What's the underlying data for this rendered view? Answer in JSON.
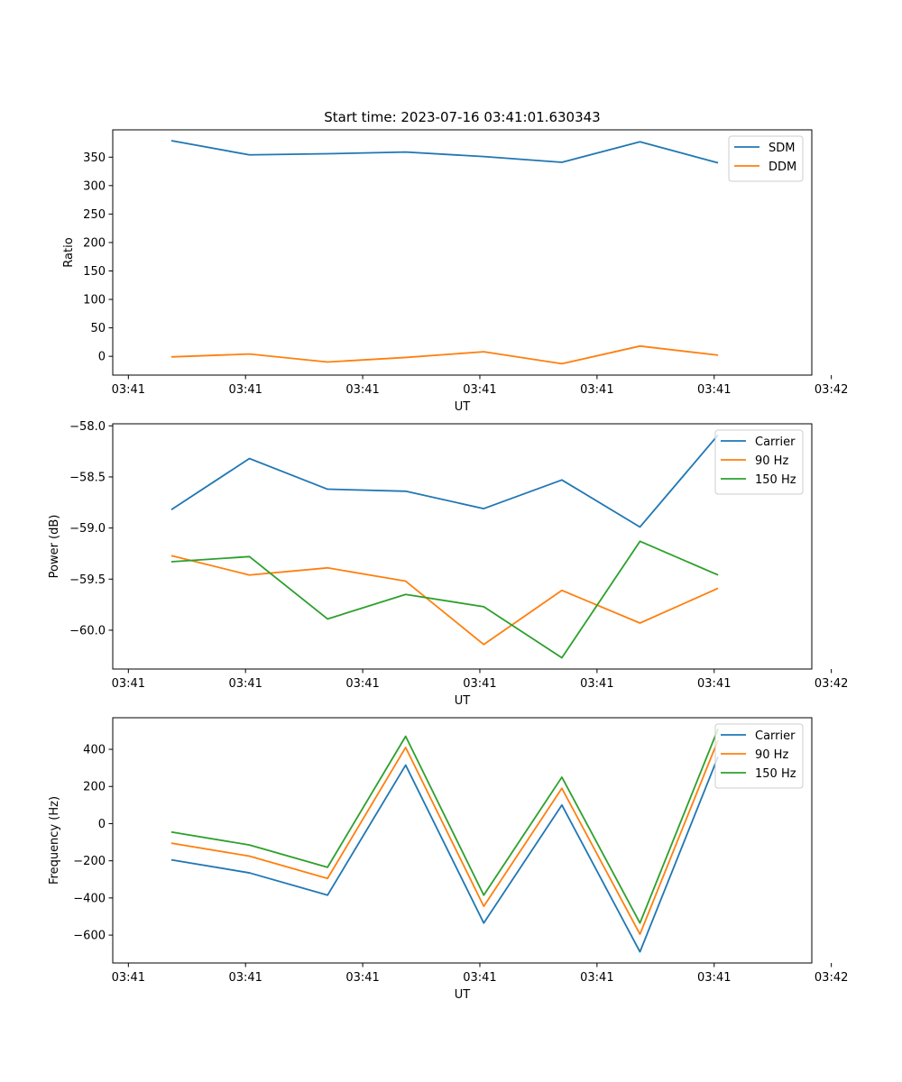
{
  "figure_title": "Start time: 2023-07-16 03:41:01.630343",
  "colors": {
    "blue": "#1f77b4",
    "orange": "#ff7f0e",
    "green": "#2ca02c"
  },
  "chart_data": [
    {
      "type": "line",
      "title": "Start time: 2023-07-16 03:41:01.630343",
      "xlabel": "UT",
      "ylabel": "Ratio",
      "x": [
        1,
        2,
        3,
        4,
        5,
        6,
        7,
        8
      ],
      "xlim": [
        0.25,
        9.2
      ],
      "x_ticks": [
        0.45,
        1.95,
        3.45,
        4.95,
        6.45,
        7.95,
        9.45
      ],
      "x_tick_labels": [
        "03:41",
        "03:41",
        "03:41",
        "03:41",
        "03:41",
        "03:41",
        "03:42"
      ],
      "ylim": [
        -33,
        398
      ],
      "y_ticks": [
        0,
        50,
        100,
        150,
        200,
        250,
        300,
        350
      ],
      "y_tick_labels": [
        "0",
        "50",
        "100",
        "150",
        "200",
        "250",
        "300",
        "350"
      ],
      "legend_position": "top-right",
      "series": [
        {
          "name": "SDM",
          "color": "#1f77b4",
          "values": [
            379,
            354,
            356,
            359,
            351,
            341,
            377,
            340
          ]
        },
        {
          "name": "DDM",
          "color": "#ff7f0e",
          "values": [
            -1,
            4,
            -10,
            -2,
            8,
            -13,
            18,
            2
          ]
        }
      ]
    },
    {
      "type": "line",
      "title": "",
      "xlabel": "UT",
      "ylabel": "Power (dB)",
      "x": [
        1,
        2,
        3,
        4,
        5,
        6,
        7,
        8
      ],
      "xlim": [
        0.25,
        9.2
      ],
      "x_ticks": [
        0.45,
        1.95,
        3.45,
        4.95,
        6.45,
        7.95,
        9.45
      ],
      "x_tick_labels": [
        "03:41",
        "03:41",
        "03:41",
        "03:41",
        "03:41",
        "03:41",
        "03:42"
      ],
      "ylim": [
        -60.38,
        -57.98
      ],
      "y_ticks": [
        -60.0,
        -59.5,
        -59.0,
        -58.5,
        -58.0
      ],
      "y_tick_labels": [
        "−60.0",
        "−59.5",
        "−59.0",
        "−58.5",
        "−58.0"
      ],
      "legend_position": "top-right",
      "series": [
        {
          "name": "Carrier",
          "color": "#1f77b4",
          "values": [
            -58.82,
            -58.32,
            -58.62,
            -58.64,
            -58.81,
            -58.53,
            -58.99,
            -58.09
          ]
        },
        {
          "name": "90 Hz",
          "color": "#ff7f0e",
          "values": [
            -59.27,
            -59.46,
            -59.39,
            -59.52,
            -60.14,
            -59.61,
            -59.93,
            -59.59
          ]
        },
        {
          "name": "150 Hz",
          "color": "#2ca02c",
          "values": [
            -59.33,
            -59.28,
            -59.89,
            -59.65,
            -59.77,
            -60.27,
            -59.13,
            -59.46
          ]
        }
      ]
    },
    {
      "type": "line",
      "title": "",
      "xlabel": "UT",
      "ylabel": "Frequency (Hz)",
      "x": [
        1,
        2,
        3,
        4,
        5,
        6,
        7,
        8
      ],
      "xlim": [
        0.25,
        9.2
      ],
      "x_ticks": [
        0.45,
        1.95,
        3.45,
        4.95,
        6.45,
        7.95,
        9.45
      ],
      "x_tick_labels": [
        "03:41",
        "03:41",
        "03:41",
        "03:41",
        "03:41",
        "03:41",
        "03:42"
      ],
      "ylim": [
        -750,
        570
      ],
      "y_ticks": [
        -600,
        -400,
        -200,
        0,
        200,
        400
      ],
      "y_tick_labels": [
        "−600",
        "−400",
        "−200",
        "0",
        "200",
        "400"
      ],
      "legend_position": "top-right",
      "series": [
        {
          "name": "Carrier",
          "color": "#1f77b4",
          "values": [
            -195,
            -265,
            -385,
            315,
            -535,
            100,
            -690,
            360
          ]
        },
        {
          "name": "90 Hz",
          "color": "#ff7f0e",
          "values": [
            -105,
            -175,
            -295,
            410,
            -445,
            190,
            -595,
            450
          ]
        },
        {
          "name": "150 Hz",
          "color": "#2ca02c",
          "values": [
            -45,
            -115,
            -235,
            470,
            -385,
            250,
            -535,
            510
          ]
        }
      ]
    }
  ]
}
